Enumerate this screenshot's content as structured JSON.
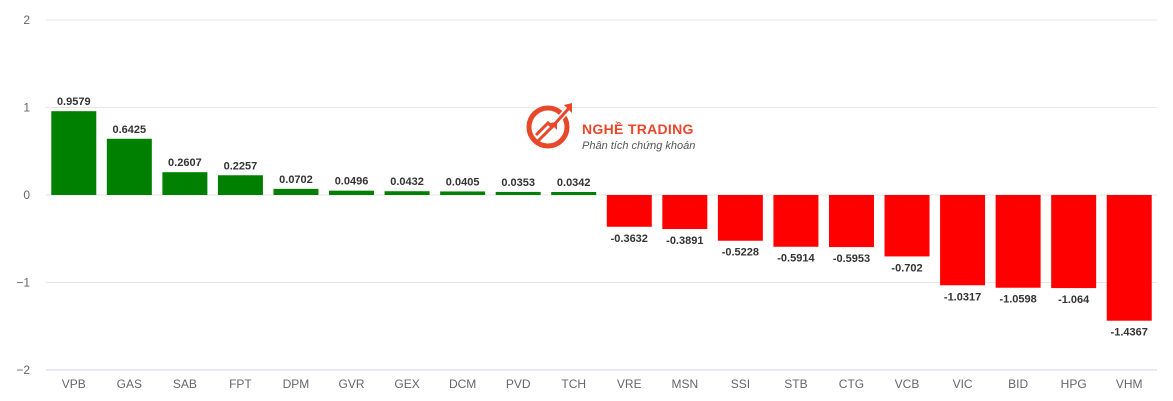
{
  "chart_data": {
    "type": "bar",
    "categories": [
      "VPB",
      "GAS",
      "SAB",
      "FPT",
      "DPM",
      "GVR",
      "GEX",
      "DCM",
      "PVD",
      "TCH",
      "VRE",
      "MSN",
      "SSI",
      "STB",
      "CTG",
      "VCB",
      "VIC",
      "BID",
      "HPG",
      "VHM"
    ],
    "values": [
      0.9579,
      0.6425,
      0.2607,
      0.2257,
      0.0702,
      0.0496,
      0.0432,
      0.0405,
      0.0353,
      0.0342,
      -0.3632,
      -0.3891,
      -0.5228,
      -0.5914,
      -0.5953,
      -0.702,
      -1.0317,
      -1.0598,
      -1.064,
      -1.4367
    ],
    "data_labels": [
      "0.9579",
      "0.6425",
      "0.2607",
      "0.2257",
      "0.0702",
      "0.0496",
      "0.0432",
      "0.0405",
      "0.0353",
      "0.0342",
      "-0.3632",
      "-0.3891",
      "-0.5228",
      "-0.5914",
      "-0.5953",
      "-0.702",
      "-1.0317",
      "-1.0598",
      "-1.064",
      "-1.4367"
    ],
    "ylim": [
      -2,
      2
    ],
    "yticks": [
      2,
      1,
      0,
      -1,
      -2
    ],
    "ytick_labels": [
      "2",
      "1",
      "0",
      "−1",
      "−2"
    ],
    "grid": true,
    "colors": {
      "positive": "#008000",
      "negative": "#ff0000"
    }
  },
  "watermark": {
    "title": "NGHỀ TRADING",
    "subtitle": "Phân tích chứng khoán",
    "color": "#e8472a"
  }
}
